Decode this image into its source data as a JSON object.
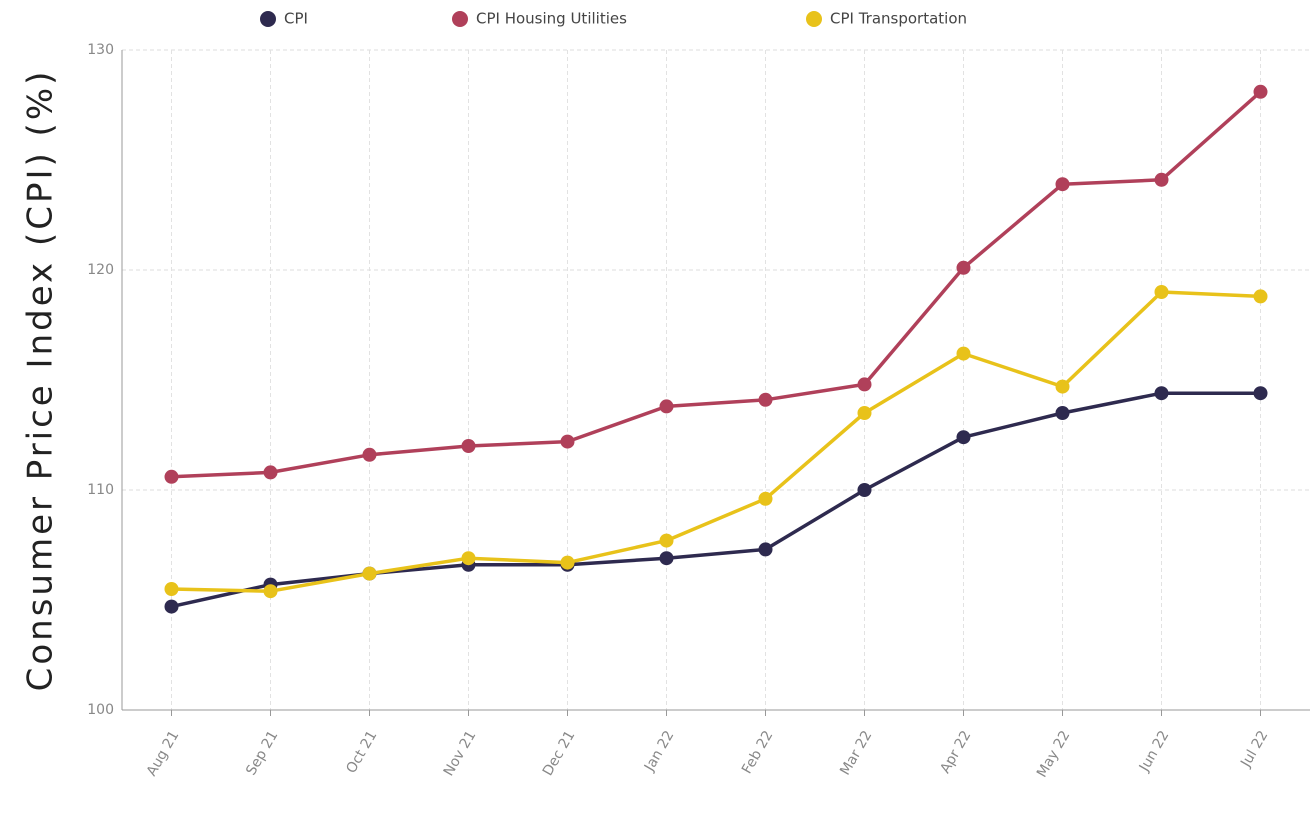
{
  "chart_data": {
    "type": "line",
    "y_label": "Consumer Price Index (CPI)  (%)",
    "categories": [
      "Aug 21",
      "Sep 21",
      "Oct 21",
      "Nov 21",
      "Dec 21",
      "Jan 22",
      "Feb 22",
      "Mar 22",
      "Apr 22",
      "May 22",
      "Jun 22",
      "Jul 22"
    ],
    "series": [
      {
        "name": "CPI",
        "color": "#2e2a4f",
        "values": [
          104.7,
          105.7,
          106.2,
          106.6,
          106.6,
          106.9,
          107.3,
          110.0,
          112.4,
          113.5,
          114.4,
          114.4
        ]
      },
      {
        "name": "CPI Housing Utilities",
        "color": "#b0405a",
        "values": [
          110.6,
          110.8,
          111.6,
          112.0,
          112.2,
          113.8,
          114.1,
          114.8,
          120.1,
          123.9,
          124.1,
          128.1
        ]
      },
      {
        "name": "CPI Transportation",
        "color": "#e8c21a",
        "values": [
          105.5,
          105.4,
          106.2,
          106.9,
          106.7,
          107.7,
          109.6,
          113.5,
          116.2,
          114.7,
          119.0,
          118.8
        ]
      }
    ],
    "ylim": [
      100,
      130
    ],
    "yticks": [
      100,
      110,
      120,
      130
    ],
    "grid": true,
    "legend": "top"
  }
}
